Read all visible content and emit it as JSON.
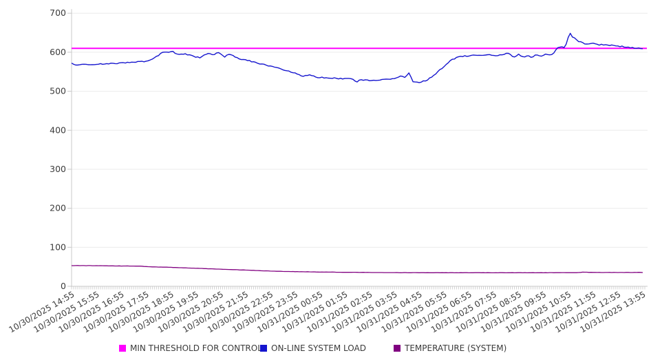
{
  "chart_data": {
    "type": "line",
    "title": "",
    "grid": true,
    "legend_position": "bottom",
    "x_axis": {
      "hours_span": 23,
      "minor_tick_minutes": 5,
      "categories": [
        "10/30/2025 14:55",
        "10/30/2025 15:55",
        "10/30/2025 16:55",
        "10/30/2025 17:55",
        "10/30/2025 18:55",
        "10/30/2025 19:55",
        "10/30/2025 20:55",
        "10/30/2025 21:55",
        "10/30/2025 22:55",
        "10/30/2025 23:55",
        "10/31/2025 00:55",
        "10/31/2025 01:55",
        "10/31/2025 02:55",
        "10/31/2025 03:55",
        "10/31/2025 04:55",
        "10/31/2025 05:55",
        "10/31/2025 06:55",
        "10/31/2025 07:55",
        "10/31/2025 08:55",
        "10/31/2025 09:55",
        "10/31/2025 10:55",
        "10/31/2025 11:55",
        "10/31/2025 12:55",
        "10/31/2025 13:55"
      ]
    },
    "y_axis": {
      "min": 0,
      "max": 700,
      "tick_step": 100,
      "ticks": [
        "700",
        "600",
        "500",
        "400",
        "300",
        "200",
        "100",
        "0"
      ]
    },
    "series": [
      {
        "name": "MIN THRESHOLD FOR CONTROL",
        "color": "#ff00ff",
        "type": "constant",
        "value": 610
      },
      {
        "name": "ON-LINE SYSTEM LOAD",
        "color": "#1515ce",
        "type": "anchors",
        "points": [
          [
            0,
            571
          ],
          [
            0.2,
            566
          ],
          [
            0.45,
            570
          ],
          [
            0.7,
            567
          ],
          [
            1,
            569
          ],
          [
            1.4,
            571
          ],
          [
            1.9,
            572
          ],
          [
            2.4,
            574
          ],
          [
            2.9,
            576
          ],
          [
            3.2,
            580
          ],
          [
            3.5,
            592
          ],
          [
            3.7,
            602
          ],
          [
            3.85,
            599
          ],
          [
            4.05,
            603
          ],
          [
            4.2,
            594
          ],
          [
            4.45,
            596
          ],
          [
            4.7,
            594
          ],
          [
            4.95,
            589
          ],
          [
            5.15,
            586
          ],
          [
            5.4,
            594
          ],
          [
            5.55,
            599
          ],
          [
            5.7,
            591
          ],
          [
            5.9,
            600
          ],
          [
            6.15,
            588
          ],
          [
            6.35,
            595
          ],
          [
            6.5,
            591
          ],
          [
            6.7,
            584
          ],
          [
            7.1,
            579
          ],
          [
            7.5,
            572
          ],
          [
            7.9,
            566
          ],
          [
            8.2,
            561
          ],
          [
            8.5,
            556
          ],
          [
            8.9,
            549
          ],
          [
            9.3,
            539
          ],
          [
            9.6,
            542
          ],
          [
            9.9,
            536
          ],
          [
            10.3,
            534
          ],
          [
            10.7,
            533
          ],
          [
            11.1,
            532
          ],
          [
            11.35,
            531
          ],
          [
            11.45,
            522
          ],
          [
            11.6,
            529
          ],
          [
            12.1,
            528
          ],
          [
            12.5,
            530
          ],
          [
            12.9,
            532
          ],
          [
            13.15,
            536
          ],
          [
            13.3,
            540
          ],
          [
            13.45,
            535
          ],
          [
            13.6,
            548
          ],
          [
            13.75,
            524
          ],
          [
            14,
            523
          ],
          [
            14.3,
            528
          ],
          [
            14.65,
            544
          ],
          [
            15,
            564
          ],
          [
            15.3,
            580
          ],
          [
            15.55,
            588
          ],
          [
            16,
            591
          ],
          [
            16.25,
            593
          ],
          [
            16.5,
            592
          ],
          [
            16.8,
            594
          ],
          [
            17.05,
            591
          ],
          [
            17.35,
            594
          ],
          [
            17.6,
            597
          ],
          [
            17.8,
            586
          ],
          [
            18,
            594
          ],
          [
            18.2,
            587
          ],
          [
            18.4,
            592
          ],
          [
            18.55,
            586
          ],
          [
            18.7,
            594
          ],
          [
            18.9,
            589
          ],
          [
            19.1,
            596
          ],
          [
            19.3,
            591
          ],
          [
            19.45,
            600
          ],
          [
            19.56,
            613
          ],
          [
            19.7,
            613
          ],
          [
            19.87,
            612
          ],
          [
            20.06,
            650
          ],
          [
            20.15,
            641
          ],
          [
            20.3,
            633
          ],
          [
            20.45,
            627
          ],
          [
            20.7,
            621
          ],
          [
            21,
            622
          ],
          [
            21.25,
            619
          ],
          [
            21.5,
            620
          ],
          [
            21.8,
            617
          ],
          [
            22.05,
            615
          ],
          [
            22.3,
            614
          ],
          [
            22.6,
            611
          ],
          [
            22.85,
            610
          ],
          [
            23,
            609
          ]
        ]
      },
      {
        "name": "TEMPERATURE (SYSTEM)",
        "color": "#800080",
        "type": "anchors",
        "points": [
          [
            0,
            53
          ],
          [
            0.6,
            53
          ],
          [
            1.2,
            52.6
          ],
          [
            2,
            52.2
          ],
          [
            2.8,
            51.6
          ],
          [
            3.1,
            50.2
          ],
          [
            3.8,
            49
          ],
          [
            4.5,
            47.4
          ],
          [
            5.2,
            45.8
          ],
          [
            5.9,
            44.2
          ],
          [
            6.6,
            42.6
          ],
          [
            7.2,
            41
          ],
          [
            7.8,
            39.6
          ],
          [
            8.4,
            38.4
          ],
          [
            9.2,
            37.4
          ],
          [
            10,
            36.6
          ],
          [
            11,
            36
          ],
          [
            12,
            35.4
          ],
          [
            13.5,
            35
          ],
          [
            15.5,
            34.8
          ],
          [
            17.5,
            34.7
          ],
          [
            19,
            34.8
          ],
          [
            20.3,
            35
          ],
          [
            20.6,
            36.3
          ],
          [
            20.9,
            35.6
          ],
          [
            22,
            35.4
          ],
          [
            23,
            35.6
          ]
        ]
      }
    ]
  }
}
